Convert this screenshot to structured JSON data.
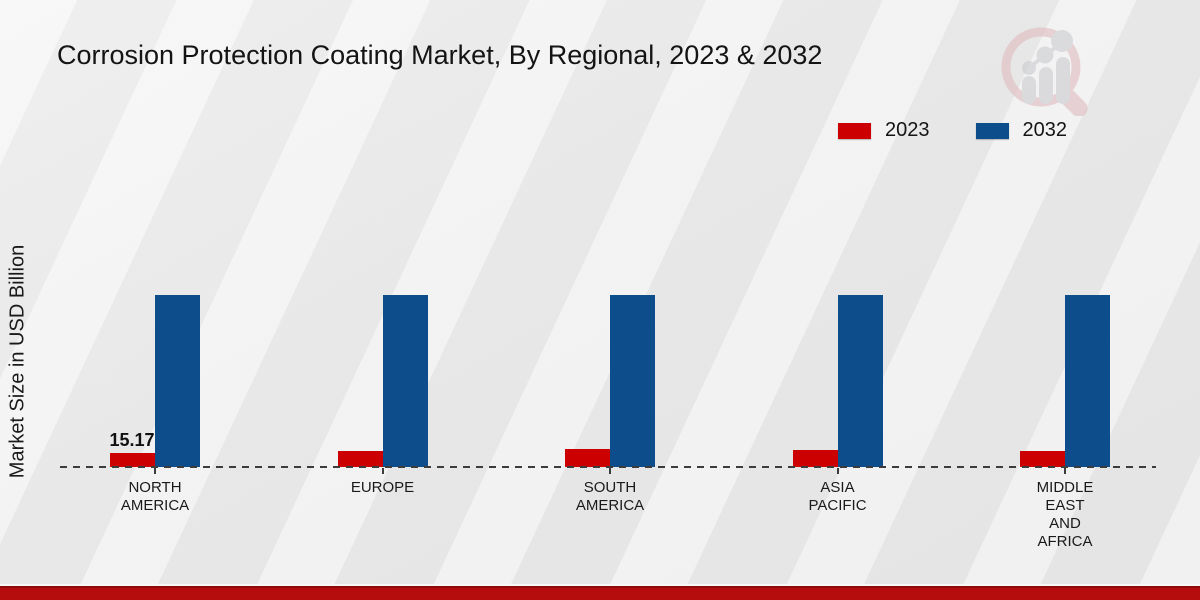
{
  "page": {
    "title": "Corrosion Protection Coating Market, By Regional, 2023 & 2032",
    "ylabel": "Market Size in USD Billion"
  },
  "legend": {
    "items": [
      {
        "label": "2023",
        "color": "#cc0000"
      },
      {
        "label": "2032",
        "color": "#0d4d8c"
      }
    ]
  },
  "colors": {
    "bar_2023": "#cc0000",
    "bar_2032": "#0d4d8c",
    "footer_strip": "#b50d0d",
    "baseline": "#3c3c3c"
  },
  "chart_data": {
    "type": "bar",
    "title": "Corrosion Protection Coating Market, By Regional, 2023 & 2032",
    "xlabel": "",
    "ylabel": "Market Size in USD Billion",
    "categories": [
      "NORTH AMERICA",
      "EUROPE",
      "SOUTH AMERICA",
      "ASIA PACIFIC",
      "MIDDLE EAST AND AFRICA"
    ],
    "category_lines": [
      [
        "NORTH",
        "AMERICA"
      ],
      [
        "EUROPE"
      ],
      [
        "SOUTH",
        "AMERICA"
      ],
      [
        "ASIA",
        "PACIFIC"
      ],
      [
        "MIDDLE",
        "EAST",
        "AND",
        "AFRICA"
      ]
    ],
    "series": [
      {
        "name": "2023",
        "color": "#cc0000",
        "values": [
          15.17,
          17.3,
          19.5,
          18.4,
          17.3
        ]
      },
      {
        "name": "2032",
        "color": "#0d4d8c",
        "values": [
          186,
          186,
          186,
          186,
          186
        ]
      }
    ],
    "data_labels": [
      "15.17",
      "",
      "",
      "",
      ""
    ],
    "legend_position": "top-right",
    "grid": false,
    "baseline_style": "dashed",
    "ylim": [
      0,
      200
    ]
  }
}
